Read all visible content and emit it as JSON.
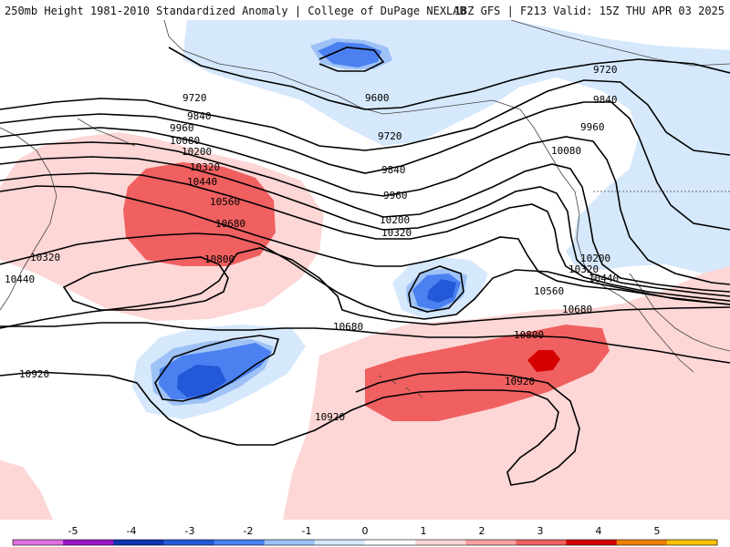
{
  "header": {
    "title_left": "250mb Height 1981-2010 Standardized Anomaly | College of DuPage NEXLAB",
    "title_right": "18Z GFS | F213 Valid: 15Z THU APR 03 2025"
  },
  "legend": {
    "ticks": [
      "-5",
      "-4",
      "-3",
      "-2",
      "-1",
      "0",
      "1",
      "2",
      "3",
      "4",
      "5"
    ],
    "colors": [
      "#e070e0",
      "#9a14c8",
      "#0c34b0",
      "#2358d8",
      "#4a80f0",
      "#9ec2f6",
      "#d6e8fc",
      "#ffffff",
      "#fdd6d6",
      "#f9a0a0",
      "#f06060",
      "#d40000",
      "#f08000",
      "#f8c000"
    ]
  },
  "contours": [
    {
      "value": "9600"
    },
    {
      "value": "9720"
    },
    {
      "value": "9840"
    },
    {
      "value": "9960"
    },
    {
      "value": "10080"
    },
    {
      "value": "10200"
    },
    {
      "value": "10320"
    },
    {
      "value": "10440"
    },
    {
      "value": "10560"
    },
    {
      "value": "10680"
    },
    {
      "value": "10800"
    },
    {
      "value": "10920"
    }
  ],
  "labels": {
    "l9720a": "9720",
    "l9720b": "9720",
    "l9720c": "9720",
    "l9600": "9600",
    "l9840a": "9840",
    "l9840b": "9840",
    "l9840c": "9840",
    "l9960a": "9960",
    "l9960b": "9960",
    "l9960c": "9960",
    "l10080a": "10080",
    "l10080b": "10080",
    "l10200a": "10200",
    "l10200b": "10200",
    "l10200c": "10200",
    "l10320a": "10320",
    "l10320b": "10320",
    "l10320c": "10320",
    "l10320d": "10320",
    "l10440a": "10440",
    "l10440b": "10440",
    "l10440c": "10440",
    "l10560a": "10560",
    "l10560b": "10560",
    "l10680a": "10680",
    "l10680b": "10680",
    "l10680c": "10680",
    "l10800a": "10800",
    "l10800b": "10800",
    "l10920a": "10920",
    "l10920b": "10920",
    "l10920c": "10920"
  }
}
